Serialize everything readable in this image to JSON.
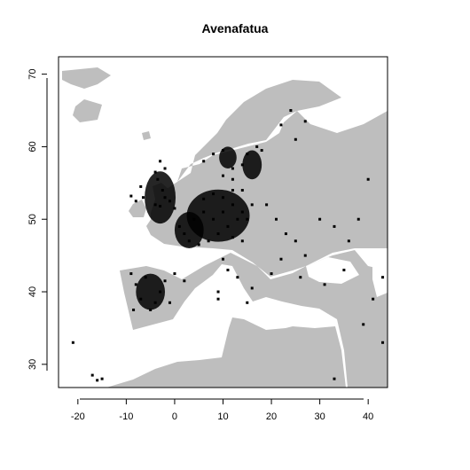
{
  "title": "Avenafatua",
  "chart_data": {
    "type": "scatter",
    "title": "Avenafatua",
    "xlabel": "",
    "ylabel": "",
    "xlim": [
      -24,
      44
    ],
    "ylim": [
      26.8,
      72.4
    ],
    "x_ticks": [
      "-20",
      "-10",
      "0",
      "10",
      "20",
      "30",
      "40"
    ],
    "y_ticks": [
      "30",
      "40",
      "50",
      "60",
      "70"
    ],
    "land_color": "#bebebe",
    "sea_color": "#ffffff",
    "point_color": "#000000",
    "series": [
      {
        "points": [
          [
            -4,
            52
          ],
          [
            -2,
            53
          ],
          [
            -1,
            52.5
          ],
          [
            0,
            51.5
          ],
          [
            -3,
            51.8
          ],
          [
            -2.5,
            54
          ],
          [
            -3.5,
            55.5
          ],
          [
            -4,
            56.5
          ],
          [
            -2,
            57
          ],
          [
            -3,
            58
          ],
          [
            -6.5,
            53
          ],
          [
            -8,
            52.5
          ],
          [
            -7,
            54.5
          ],
          [
            -9,
            53.2
          ],
          [
            2,
            48
          ],
          [
            4,
            50
          ],
          [
            6,
            51
          ],
          [
            8,
            50
          ],
          [
            10,
            51
          ],
          [
            12,
            52
          ],
          [
            14,
            51
          ],
          [
            9,
            48
          ],
          [
            11,
            49
          ],
          [
            13,
            50
          ],
          [
            7,
            47
          ],
          [
            3,
            47
          ],
          [
            1,
            49
          ],
          [
            5,
            46.5
          ],
          [
            6,
            52.8
          ],
          [
            8,
            53.5
          ],
          [
            10,
            53
          ],
          [
            12,
            54
          ],
          [
            14,
            54
          ],
          [
            16,
            52
          ],
          [
            15,
            50
          ],
          [
            14,
            47
          ],
          [
            12,
            47.5
          ],
          [
            -5,
            37.5
          ],
          [
            -3,
            40
          ],
          [
            -7,
            39
          ],
          [
            -6,
            42
          ],
          [
            -2,
            41.5
          ],
          [
            -4,
            38.5
          ],
          [
            -8,
            41
          ],
          [
            -8.5,
            37.5
          ],
          [
            -1,
            38.5
          ],
          [
            0,
            42.5
          ],
          [
            2,
            41.5
          ],
          [
            -9,
            42.5
          ],
          [
            11,
            43
          ],
          [
            13,
            42
          ],
          [
            10,
            44.5
          ],
          [
            15,
            38.5
          ],
          [
            16,
            40.5
          ],
          [
            9,
            40
          ],
          [
            9,
            39
          ],
          [
            6,
            58
          ],
          [
            8,
            59
          ],
          [
            10,
            59.5
          ],
          [
            12,
            57
          ],
          [
            15,
            59
          ],
          [
            17,
            60
          ],
          [
            14,
            57.5
          ],
          [
            18,
            59.5
          ],
          [
            12,
            55.5
          ],
          [
            10,
            56
          ],
          [
            22,
            63
          ],
          [
            25,
            61
          ],
          [
            27,
            63.5
          ],
          [
            24,
            65
          ],
          [
            19,
            52
          ],
          [
            21,
            50
          ],
          [
            23,
            48
          ],
          [
            25,
            47
          ],
          [
            27,
            45
          ],
          [
            22,
            44.5
          ],
          [
            20,
            42.5
          ],
          [
            26,
            42
          ],
          [
            30,
            50
          ],
          [
            33,
            49
          ],
          [
            36,
            47
          ],
          [
            38,
            50
          ],
          [
            35,
            43
          ],
          [
            31,
            41
          ],
          [
            40,
            55.5
          ],
          [
            41,
            39
          ],
          [
            43,
            42
          ],
          [
            39,
            35.5
          ],
          [
            43,
            33
          ],
          [
            33,
            28
          ],
          [
            -21,
            33
          ],
          [
            -17,
            28.5
          ],
          [
            -15,
            28
          ],
          [
            -16,
            27.8
          ]
        ]
      }
    ]
  }
}
